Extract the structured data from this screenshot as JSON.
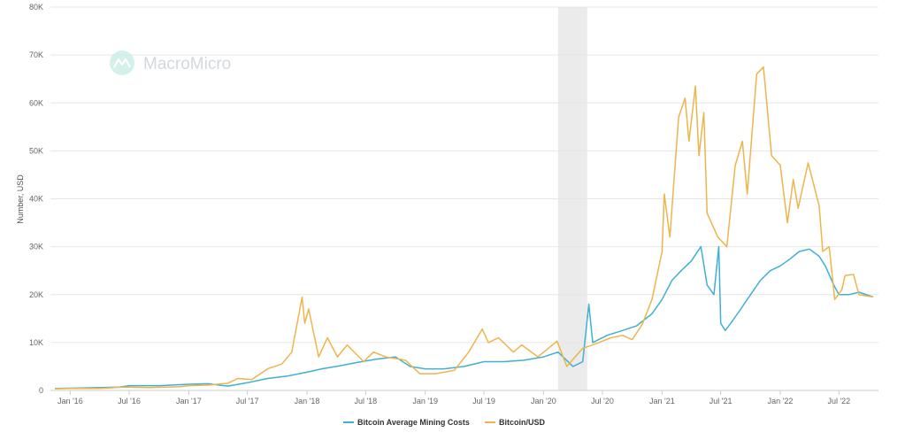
{
  "watermark": {
    "text": "MacroMicro",
    "icon": "macromicro-logo-icon"
  },
  "colors": {
    "mining": "#41afd4",
    "btc": "#edb54b",
    "grid": "#e6e6e6",
    "shade": "#ebebeb"
  },
  "chart_data": {
    "type": "line",
    "ylabel": "Number, USD",
    "ylim": [
      0,
      80000
    ],
    "xlim": [
      "2015-11-01",
      "2022-10-31"
    ],
    "grid": true,
    "legend_position": "bottom-center",
    "y_ticks": [
      {
        "value": 0,
        "label": "0"
      },
      {
        "value": 10000,
        "label": "10K"
      },
      {
        "value": 20000,
        "label": "20K"
      },
      {
        "value": 30000,
        "label": "30K"
      },
      {
        "value": 40000,
        "label": "40K"
      },
      {
        "value": 50000,
        "label": "50K"
      },
      {
        "value": 60000,
        "label": "60K"
      },
      {
        "value": 70000,
        "label": "70K"
      },
      {
        "value": 80000,
        "label": "80K"
      }
    ],
    "x_ticks": [
      {
        "date": "2016-01-01",
        "label": "Jan '16"
      },
      {
        "date": "2016-07-01",
        "label": "Jul '16"
      },
      {
        "date": "2017-01-01",
        "label": "Jan '17"
      },
      {
        "date": "2017-07-01",
        "label": "Jul '17"
      },
      {
        "date": "2018-01-01",
        "label": "Jan '18"
      },
      {
        "date": "2018-07-01",
        "label": "Jul '18"
      },
      {
        "date": "2019-01-01",
        "label": "Jan '19"
      },
      {
        "date": "2019-07-01",
        "label": "Jul '19"
      },
      {
        "date": "2020-01-01",
        "label": "Jan '20"
      },
      {
        "date": "2020-07-01",
        "label": "Jul '20"
      },
      {
        "date": "2021-01-01",
        "label": "Jan '21"
      },
      {
        "date": "2021-07-01",
        "label": "Jul '21"
      },
      {
        "date": "2022-01-01",
        "label": "Jan '22"
      },
      {
        "date": "2022-07-01",
        "label": "Jul '22"
      }
    ],
    "shaded_periods": [
      {
        "start": "2020-02-15",
        "end": "2020-05-15"
      }
    ],
    "series": [
      {
        "name": "Bitcoin Average Mining Costs",
        "color": "#41afd4",
        "points": [
          [
            "2015-11-15",
            400
          ],
          [
            "2016-02-01",
            500
          ],
          [
            "2016-04-01",
            600
          ],
          [
            "2016-06-01",
            700
          ],
          [
            "2016-07-01",
            1000
          ],
          [
            "2016-10-01",
            1000
          ],
          [
            "2017-01-01",
            1300
          ],
          [
            "2017-03-01",
            1400
          ],
          [
            "2017-05-01",
            900
          ],
          [
            "2017-07-01",
            1600
          ],
          [
            "2017-09-01",
            2500
          ],
          [
            "2017-11-01",
            3000
          ],
          [
            "2018-01-01",
            3800
          ],
          [
            "2018-02-15",
            4500
          ],
          [
            "2018-04-01",
            5000
          ],
          [
            "2018-06-01",
            5800
          ],
          [
            "2018-08-01",
            6500
          ],
          [
            "2018-10-01",
            7000
          ],
          [
            "2018-11-15",
            5000
          ],
          [
            "2019-01-01",
            4500
          ],
          [
            "2019-03-01",
            4500
          ],
          [
            "2019-05-01",
            5000
          ],
          [
            "2019-07-01",
            6000
          ],
          [
            "2019-09-01",
            6000
          ],
          [
            "2019-11-01",
            6300
          ],
          [
            "2020-01-01",
            7000
          ],
          [
            "2020-02-15",
            8000
          ],
          [
            "2020-04-01",
            5000
          ],
          [
            "2020-05-01",
            6000
          ],
          [
            "2020-05-20",
            18000
          ],
          [
            "2020-06-01",
            10000
          ],
          [
            "2020-07-15",
            11500
          ],
          [
            "2020-09-01",
            12500
          ],
          [
            "2020-10-15",
            13500
          ],
          [
            "2020-12-01",
            16000
          ],
          [
            "2021-01-01",
            19000
          ],
          [
            "2021-02-01",
            23000
          ],
          [
            "2021-03-01",
            25000
          ],
          [
            "2021-04-01",
            27000
          ],
          [
            "2021-05-01",
            30000
          ],
          [
            "2021-05-20",
            22000
          ],
          [
            "2021-06-10",
            20000
          ],
          [
            "2021-06-25",
            30000
          ],
          [
            "2021-07-01",
            14000
          ],
          [
            "2021-07-15",
            12500
          ],
          [
            "2021-08-01",
            14000
          ],
          [
            "2021-09-01",
            17000
          ],
          [
            "2021-10-01",
            20000
          ],
          [
            "2021-11-01",
            23000
          ],
          [
            "2021-12-01",
            25000
          ],
          [
            "2022-01-01",
            26000
          ],
          [
            "2022-02-01",
            27500
          ],
          [
            "2022-03-01",
            29000
          ],
          [
            "2022-04-01",
            29500
          ],
          [
            "2022-05-01",
            28000
          ],
          [
            "2022-05-20",
            26000
          ],
          [
            "2022-06-15",
            22000
          ],
          [
            "2022-07-01",
            20000
          ],
          [
            "2022-08-01",
            20000
          ],
          [
            "2022-09-01",
            20500
          ],
          [
            "2022-10-15",
            19500
          ]
        ]
      },
      {
        "name": "Bitcoin/USD",
        "color": "#edb54b",
        "points": [
          [
            "2015-11-15",
            350
          ],
          [
            "2016-01-01",
            430
          ],
          [
            "2016-04-01",
            420
          ],
          [
            "2016-06-15",
            700
          ],
          [
            "2016-09-01",
            600
          ],
          [
            "2016-12-01",
            750
          ],
          [
            "2017-01-01",
            1000
          ],
          [
            "2017-03-01",
            1100
          ],
          [
            "2017-05-01",
            1500
          ],
          [
            "2017-06-01",
            2500
          ],
          [
            "2017-07-15",
            2300
          ],
          [
            "2017-09-01",
            4500
          ],
          [
            "2017-10-15",
            5500
          ],
          [
            "2017-11-15",
            8000
          ],
          [
            "2017-12-17",
            19500
          ],
          [
            "2017-12-25",
            14000
          ],
          [
            "2018-01-06",
            17000
          ],
          [
            "2018-02-06",
            7000
          ],
          [
            "2018-03-05",
            11000
          ],
          [
            "2018-04-05",
            7000
          ],
          [
            "2018-05-05",
            9500
          ],
          [
            "2018-06-25",
            6000
          ],
          [
            "2018-07-25",
            8000
          ],
          [
            "2018-09-01",
            7000
          ],
          [
            "2018-11-01",
            6300
          ],
          [
            "2018-12-15",
            3500
          ],
          [
            "2019-02-01",
            3500
          ],
          [
            "2019-04-01",
            4200
          ],
          [
            "2019-05-15",
            8000
          ],
          [
            "2019-06-26",
            12800
          ],
          [
            "2019-07-15",
            10000
          ],
          [
            "2019-08-15",
            11000
          ],
          [
            "2019-09-30",
            8000
          ],
          [
            "2019-10-26",
            9500
          ],
          [
            "2019-12-15",
            7000
          ],
          [
            "2020-02-12",
            10300
          ],
          [
            "2020-03-13",
            5000
          ],
          [
            "2020-05-01",
            8800
          ],
          [
            "2020-06-01",
            9500
          ],
          [
            "2020-07-27",
            11000
          ],
          [
            "2020-09-01",
            11500
          ],
          [
            "2020-10-01",
            10600
          ],
          [
            "2020-11-01",
            13800
          ],
          [
            "2020-12-01",
            19000
          ],
          [
            "2021-01-01",
            29000
          ],
          [
            "2021-01-08",
            41000
          ],
          [
            "2021-01-25",
            32000
          ],
          [
            "2021-02-21",
            57000
          ],
          [
            "2021-03-13",
            61000
          ],
          [
            "2021-03-25",
            52000
          ],
          [
            "2021-04-14",
            63500
          ],
          [
            "2021-04-25",
            49000
          ],
          [
            "2021-05-10",
            58000
          ],
          [
            "2021-05-20",
            37000
          ],
          [
            "2021-06-22",
            32000
          ],
          [
            "2021-07-20",
            30000
          ],
          [
            "2021-08-15",
            47000
          ],
          [
            "2021-09-06",
            52000
          ],
          [
            "2021-09-21",
            41000
          ],
          [
            "2021-10-20",
            66000
          ],
          [
            "2021-11-10",
            67500
          ],
          [
            "2021-12-05",
            49000
          ],
          [
            "2022-01-01",
            47000
          ],
          [
            "2022-01-23",
            35000
          ],
          [
            "2022-02-10",
            44000
          ],
          [
            "2022-02-25",
            38000
          ],
          [
            "2022-03-28",
            47500
          ],
          [
            "2022-05-01",
            38500
          ],
          [
            "2022-05-12",
            29000
          ],
          [
            "2022-06-01",
            30000
          ],
          [
            "2022-06-18",
            19000
          ],
          [
            "2022-07-10",
            21000
          ],
          [
            "2022-07-20",
            24000
          ],
          [
            "2022-08-15",
            24200
          ],
          [
            "2022-09-01",
            20000
          ],
          [
            "2022-10-15",
            19500
          ]
        ]
      }
    ]
  }
}
